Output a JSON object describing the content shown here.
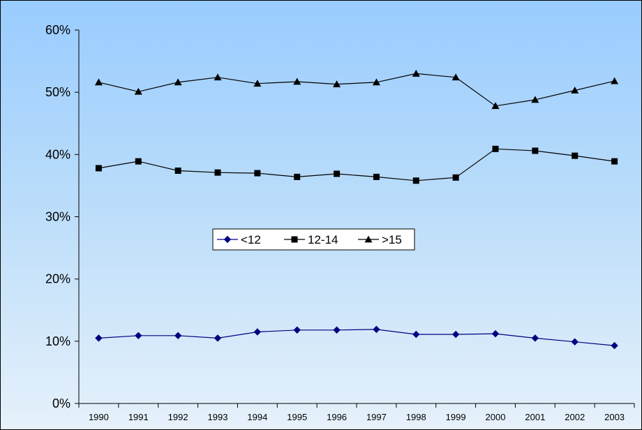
{
  "chart_data": {
    "type": "line",
    "title": "",
    "xlabel": "",
    "ylabel": "",
    "x": [
      "1990",
      "1991",
      "1992",
      "1993",
      "1994",
      "1995",
      "1996",
      "1997",
      "1998",
      "1999",
      "2000",
      "2001",
      "2002",
      "2003"
    ],
    "y_ticks": [
      "0%",
      "10%",
      "20%",
      "30%",
      "40%",
      "50%",
      "60%"
    ],
    "ylim": [
      0,
      60
    ],
    "y_unit": "%",
    "grid": false,
    "legend_position": "center-left",
    "background": "light blue gradient",
    "series": [
      {
        "name": "<12",
        "marker": "diamond",
        "line_color": "#000080",
        "marker_color": "#000080",
        "values": [
          10.5,
          10.9,
          10.9,
          10.5,
          11.5,
          11.8,
          11.8,
          11.9,
          11.1,
          11.1,
          11.2,
          10.5,
          9.9,
          9.3
        ]
      },
      {
        "name": "12-14",
        "marker": "square",
        "line_color": "#000000",
        "marker_color": "#000000",
        "values": [
          37.8,
          38.9,
          37.4,
          37.1,
          37.0,
          36.4,
          36.9,
          36.4,
          35.8,
          36.3,
          40.9,
          40.6,
          39.8,
          38.9
        ]
      },
      {
        "name": ">15",
        "marker": "triangle",
        "line_color": "#000000",
        "marker_color": "#000000",
        "values": [
          51.6,
          50.1,
          51.6,
          52.4,
          51.4,
          51.7,
          51.3,
          51.6,
          53.0,
          52.4,
          47.8,
          48.8,
          50.3,
          51.8
        ]
      }
    ]
  }
}
